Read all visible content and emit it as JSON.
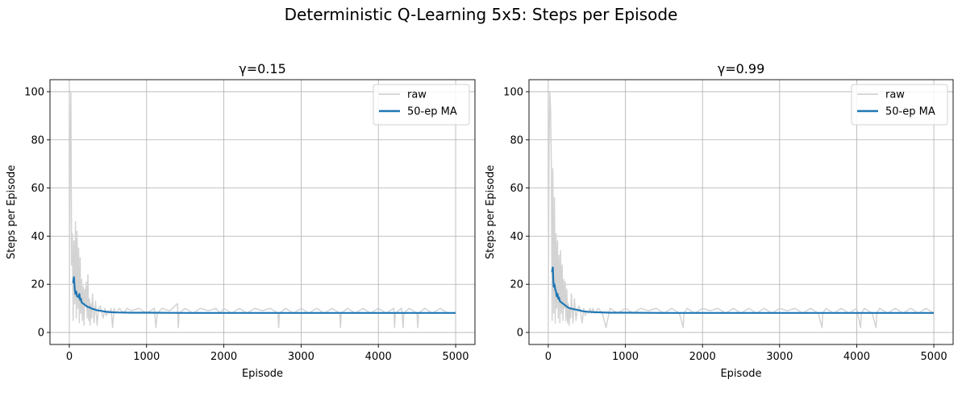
{
  "figure": {
    "title": "Deterministic Q-Learning 5x5: Steps per Episode"
  },
  "chart_data": [
    {
      "type": "line",
      "title": "γ=0.15",
      "xlabel": "Episode",
      "ylabel": "Steps per Episode",
      "xlim": [
        -250,
        5250
      ],
      "ylim": [
        -5,
        105
      ],
      "xticks": [
        0,
        1000,
        2000,
        3000,
        4000,
        5000
      ],
      "yticks": [
        0,
        20,
        40,
        60,
        80,
        100
      ],
      "grid": true,
      "legend_position": "upper right",
      "series": [
        {
          "name": "raw",
          "color": "#d3d3d3",
          "x": [
            0,
            10,
            20,
            30,
            40,
            50,
            60,
            70,
            80,
            90,
            100,
            110,
            120,
            130,
            140,
            150,
            160,
            170,
            180,
            190,
            200,
            210,
            220,
            230,
            240,
            250,
            260,
            270,
            280,
            290,
            300,
            320,
            340,
            360,
            380,
            400,
            420,
            440,
            460,
            480,
            500,
            520,
            540,
            560,
            580,
            600,
            650,
            700,
            750,
            800,
            900,
            1000,
            1100,
            1120,
            1140,
            1200,
            1300,
            1400,
            1410,
            1420,
            1500,
            1600,
            1700,
            1800,
            1900,
            1950,
            2000,
            2100,
            2200,
            2300,
            2400,
            2500,
            2600,
            2700,
            2710,
            2720,
            2800,
            2900,
            3000,
            3100,
            3200,
            3300,
            3400,
            3500,
            3510,
            3520,
            3600,
            3700,
            3800,
            3900,
            4000,
            4100,
            4200,
            4210,
            4220,
            4300,
            4320,
            4330,
            4400,
            4500,
            4510,
            4520,
            4600,
            4700,
            4800,
            4900,
            5000
          ],
          "y": [
            3,
            75,
            100,
            28,
            41,
            5,
            38,
            12,
            46,
            6,
            42,
            10,
            35,
            4,
            31,
            8,
            22,
            5,
            19,
            3,
            18,
            12,
            21,
            6,
            24,
            5,
            14,
            3,
            12,
            6,
            16,
            4,
            13,
            3,
            10,
            11,
            8,
            6,
            10,
            7,
            9,
            8,
            10,
            2,
            10,
            8,
            10,
            8,
            10,
            9,
            10,
            8,
            10,
            2,
            8,
            10,
            9,
            12,
            2,
            8,
            10,
            8,
            10,
            9,
            10,
            8,
            10,
            8,
            10,
            8,
            10,
            9,
            10,
            8,
            2,
            8,
            10,
            8,
            10,
            8,
            10,
            8,
            10,
            8,
            2,
            8,
            10,
            8,
            10,
            8,
            10,
            8,
            10,
            2,
            8,
            10,
            2,
            8,
            10,
            8,
            2,
            8,
            10,
            8,
            10,
            8,
            8
          ]
        },
        {
          "name": "50-ep MA",
          "color": "#1f77b4",
          "x": [
            49,
            60,
            70,
            80,
            90,
            100,
            110,
            120,
            130,
            140,
            150,
            160,
            180,
            200,
            220,
            240,
            260,
            280,
            300,
            330,
            360,
            400,
            450,
            500,
            600,
            800,
            1000,
            1500,
            2000,
            3000,
            4000,
            5000
          ],
          "y": [
            20.5,
            23,
            18,
            16,
            17,
            15,
            15,
            14.5,
            16,
            13.5,
            14,
            12.5,
            12,
            11.5,
            11,
            10.5,
            10.5,
            10,
            9.8,
            9.5,
            9.2,
            9,
            8.7,
            8.5,
            8.3,
            8.2,
            8.2,
            8.1,
            8.1,
            8.1,
            8.1,
            8.1
          ]
        }
      ]
    },
    {
      "type": "line",
      "title": "γ=0.99",
      "xlabel": "Episode",
      "ylabel": "Steps per Episode",
      "xlim": [
        -250,
        5250
      ],
      "ylim": [
        -5,
        105
      ],
      "xticks": [
        0,
        1000,
        2000,
        3000,
        4000,
        5000
      ],
      "yticks": [
        0,
        20,
        40,
        60,
        80,
        100
      ],
      "grid": true,
      "legend_position": "upper right",
      "series": [
        {
          "name": "raw",
          "color": "#d3d3d3",
          "x": [
            0,
            10,
            20,
            30,
            40,
            50,
            60,
            70,
            80,
            90,
            100,
            110,
            120,
            130,
            140,
            150,
            160,
            170,
            180,
            190,
            200,
            210,
            220,
            230,
            240,
            250,
            260,
            270,
            280,
            290,
            300,
            320,
            340,
            360,
            380,
            400,
            420,
            440,
            460,
            480,
            500,
            520,
            540,
            560,
            580,
            600,
            650,
            700,
            750,
            800,
            900,
            1000,
            1100,
            1200,
            1300,
            1400,
            1500,
            1600,
            1700,
            1750,
            1760,
            1800,
            1900,
            2000,
            2100,
            2200,
            2300,
            2400,
            2500,
            2600,
            2700,
            2800,
            2900,
            3000,
            3100,
            3200,
            3300,
            3400,
            3500,
            3550,
            3560,
            3600,
            3700,
            3800,
            3900,
            4000,
            4050,
            4060,
            4100,
            4200,
            4250,
            4260,
            4300,
            4400,
            4500,
            4600,
            4700,
            4800,
            4900,
            5000
          ],
          "y": [
            3,
            78,
            100,
            92,
            70,
            5,
            68,
            8,
            56,
            4,
            41,
            10,
            38,
            6,
            32,
            4,
            34,
            8,
            28,
            5,
            22,
            10,
            21,
            5,
            18,
            4,
            12,
            3,
            10,
            6,
            16,
            4,
            14,
            5,
            10,
            11,
            8,
            4,
            10,
            7,
            9,
            8,
            10,
            8,
            10,
            8,
            10,
            8,
            2,
            10,
            8,
            10,
            8,
            10,
            9,
            10,
            8,
            10,
            8,
            2,
            8,
            10,
            8,
            10,
            9,
            10,
            8,
            10,
            8,
            10,
            8,
            10,
            8,
            10,
            9,
            10,
            8,
            10,
            8,
            2,
            8,
            10,
            8,
            10,
            8,
            10,
            2,
            8,
            10,
            8,
            2,
            8,
            10,
            8,
            10,
            8,
            10,
            8,
            10,
            8
          ]
        },
        {
          "name": "50-ep MA",
          "color": "#1f77b4",
          "x": [
            49,
            55,
            60,
            65,
            70,
            80,
            90,
            100,
            110,
            120,
            130,
            140,
            150,
            170,
            190,
            210,
            230,
            250,
            280,
            310,
            350,
            400,
            450,
            500,
            600,
            800,
            1000,
            1500,
            2000,
            3000,
            4000,
            5000
          ],
          "y": [
            25,
            26.5,
            27,
            22,
            19,
            20,
            18,
            17,
            15,
            16,
            14,
            14.5,
            13,
            12.5,
            12,
            11.5,
            11,
            10.5,
            10,
            9.8,
            9.5,
            9.2,
            8.8,
            8.6,
            8.4,
            8.2,
            8.2,
            8.1,
            8.1,
            8.1,
            8.1,
            8.1
          ]
        }
      ]
    }
  ]
}
